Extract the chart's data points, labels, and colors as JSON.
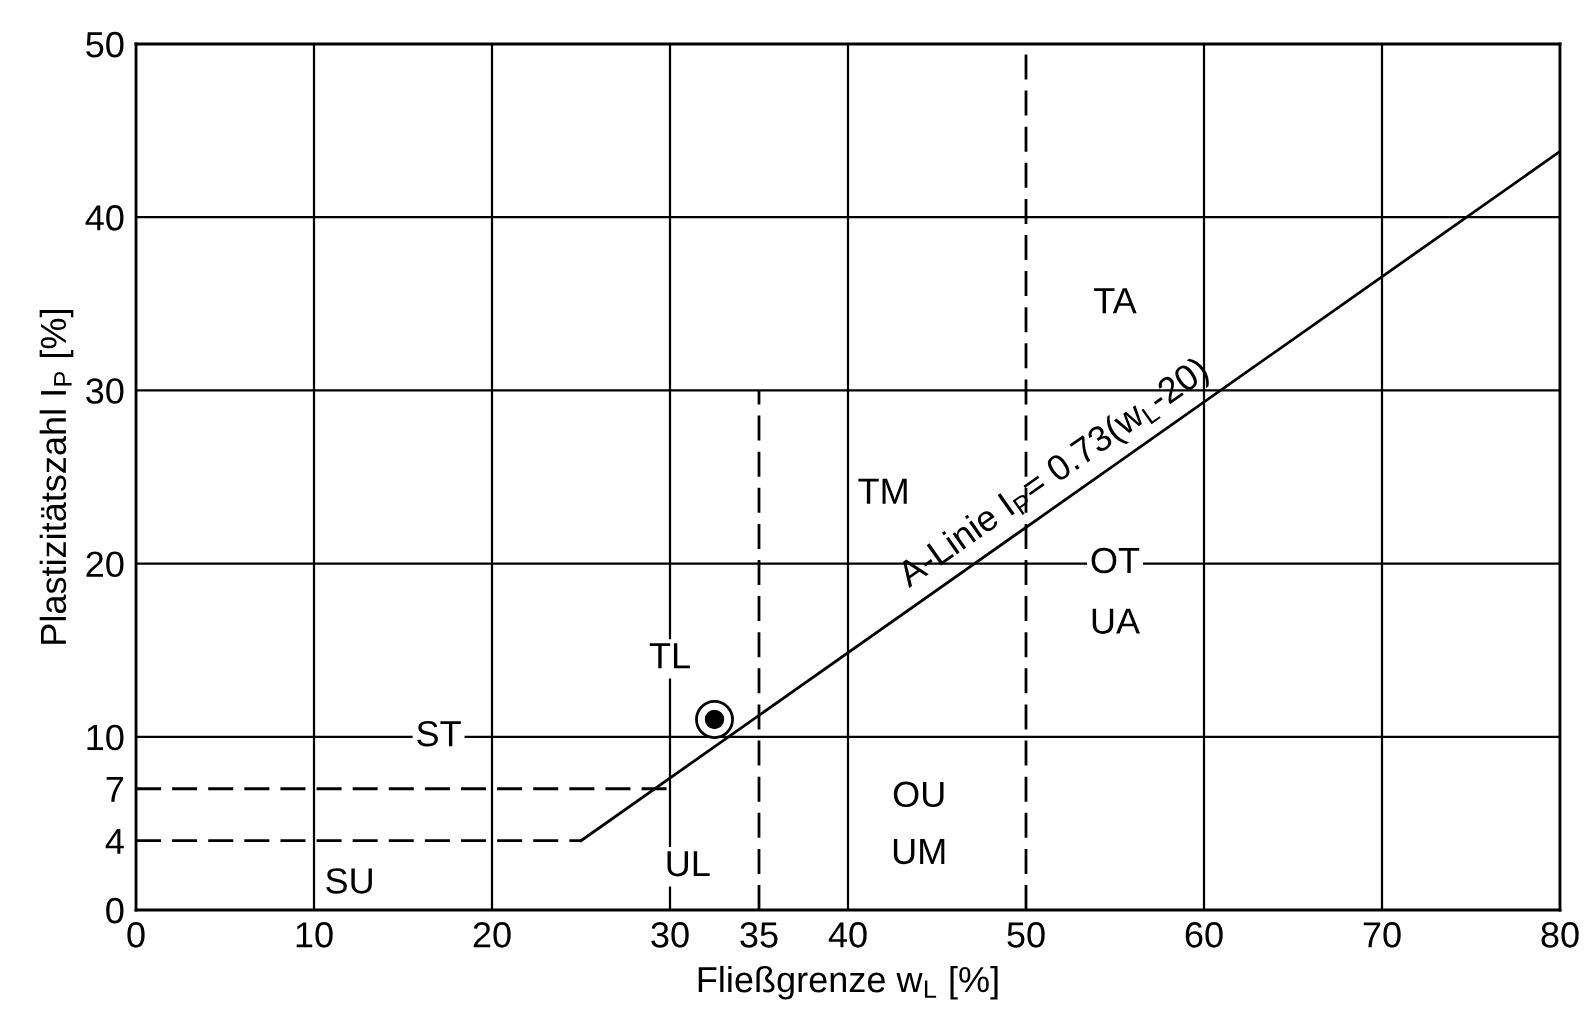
{
  "chart_data": {
    "type": "line",
    "xlabel": "Fließgrenze w$_{L}$ [%]",
    "ylabel": "Plastizitätszahl I$_{P}$ [%]",
    "xlim": [
      0,
      80
    ],
    "ylim": [
      0,
      50
    ],
    "xticks": [
      0,
      10,
      20,
      30,
      {
        "value": 35,
        "label": "35"
      },
      40,
      {
        "value": 50,
        "label": "50"
      },
      60,
      70,
      80
    ],
    "yticks": [
      0,
      {
        "value": 4,
        "label": "4"
      },
      {
        "value": 7,
        "label": "7"
      },
      10,
      20,
      30,
      40,
      50
    ],
    "grid": true,
    "series": [
      {
        "color": "#000000",
        "x": [
          25,
          80
        ],
        "values": [
          4,
          43.8
        ],
        "line_style": "solid"
      },
      {
        "color": "#000000",
        "x": [
          0,
          30
        ],
        "values": [
          7,
          7
        ],
        "line_style": "dashed"
      },
      {
        "color": "#000000",
        "x": [
          0,
          25
        ],
        "values": [
          4,
          4
        ],
        "line_style": "dashed"
      },
      {
        "color": "#000000",
        "x": [
          35,
          35
        ],
        "values": [
          0,
          30
        ],
        "line_style": "dashed"
      },
      {
        "color": "#000000",
        "x": [
          50,
          50
        ],
        "values": [
          0,
          50
        ],
        "line_style": "dashed"
      },
      {
        "type": "scatter",
        "color": "#000000",
        "x": [
          32.5
        ],
        "values": [
          11
        ],
        "marker": "circle"
      }
    ],
    "annotations": [
      "A-Linie I$_{P}$= 0.73(w$_{L}$-20)",
      {
        "text": "TA",
        "x": 55,
        "y": 35
      },
      {
        "text": "TM",
        "x": 42,
        "y": 24
      },
      {
        "text": "OT",
        "x": 55,
        "y": 20
      },
      {
        "text": "UA",
        "x": 55,
        "y": 16.5
      },
      {
        "text": "TL",
        "x": 30,
        "y": 14.5
      },
      {
        "text": "ST",
        "x": 17,
        "y": 10
      },
      {
        "text": "OU",
        "x": 44,
        "y": 6.5
      },
      {
        "text": "UM",
        "x": 44,
        "y": 3.2
      },
      {
        "text": "UL",
        "x": 31,
        "y": 2.5
      },
      {
        "text": "SU",
        "x": 12,
        "y": 1.5
      }
    ]
  }
}
